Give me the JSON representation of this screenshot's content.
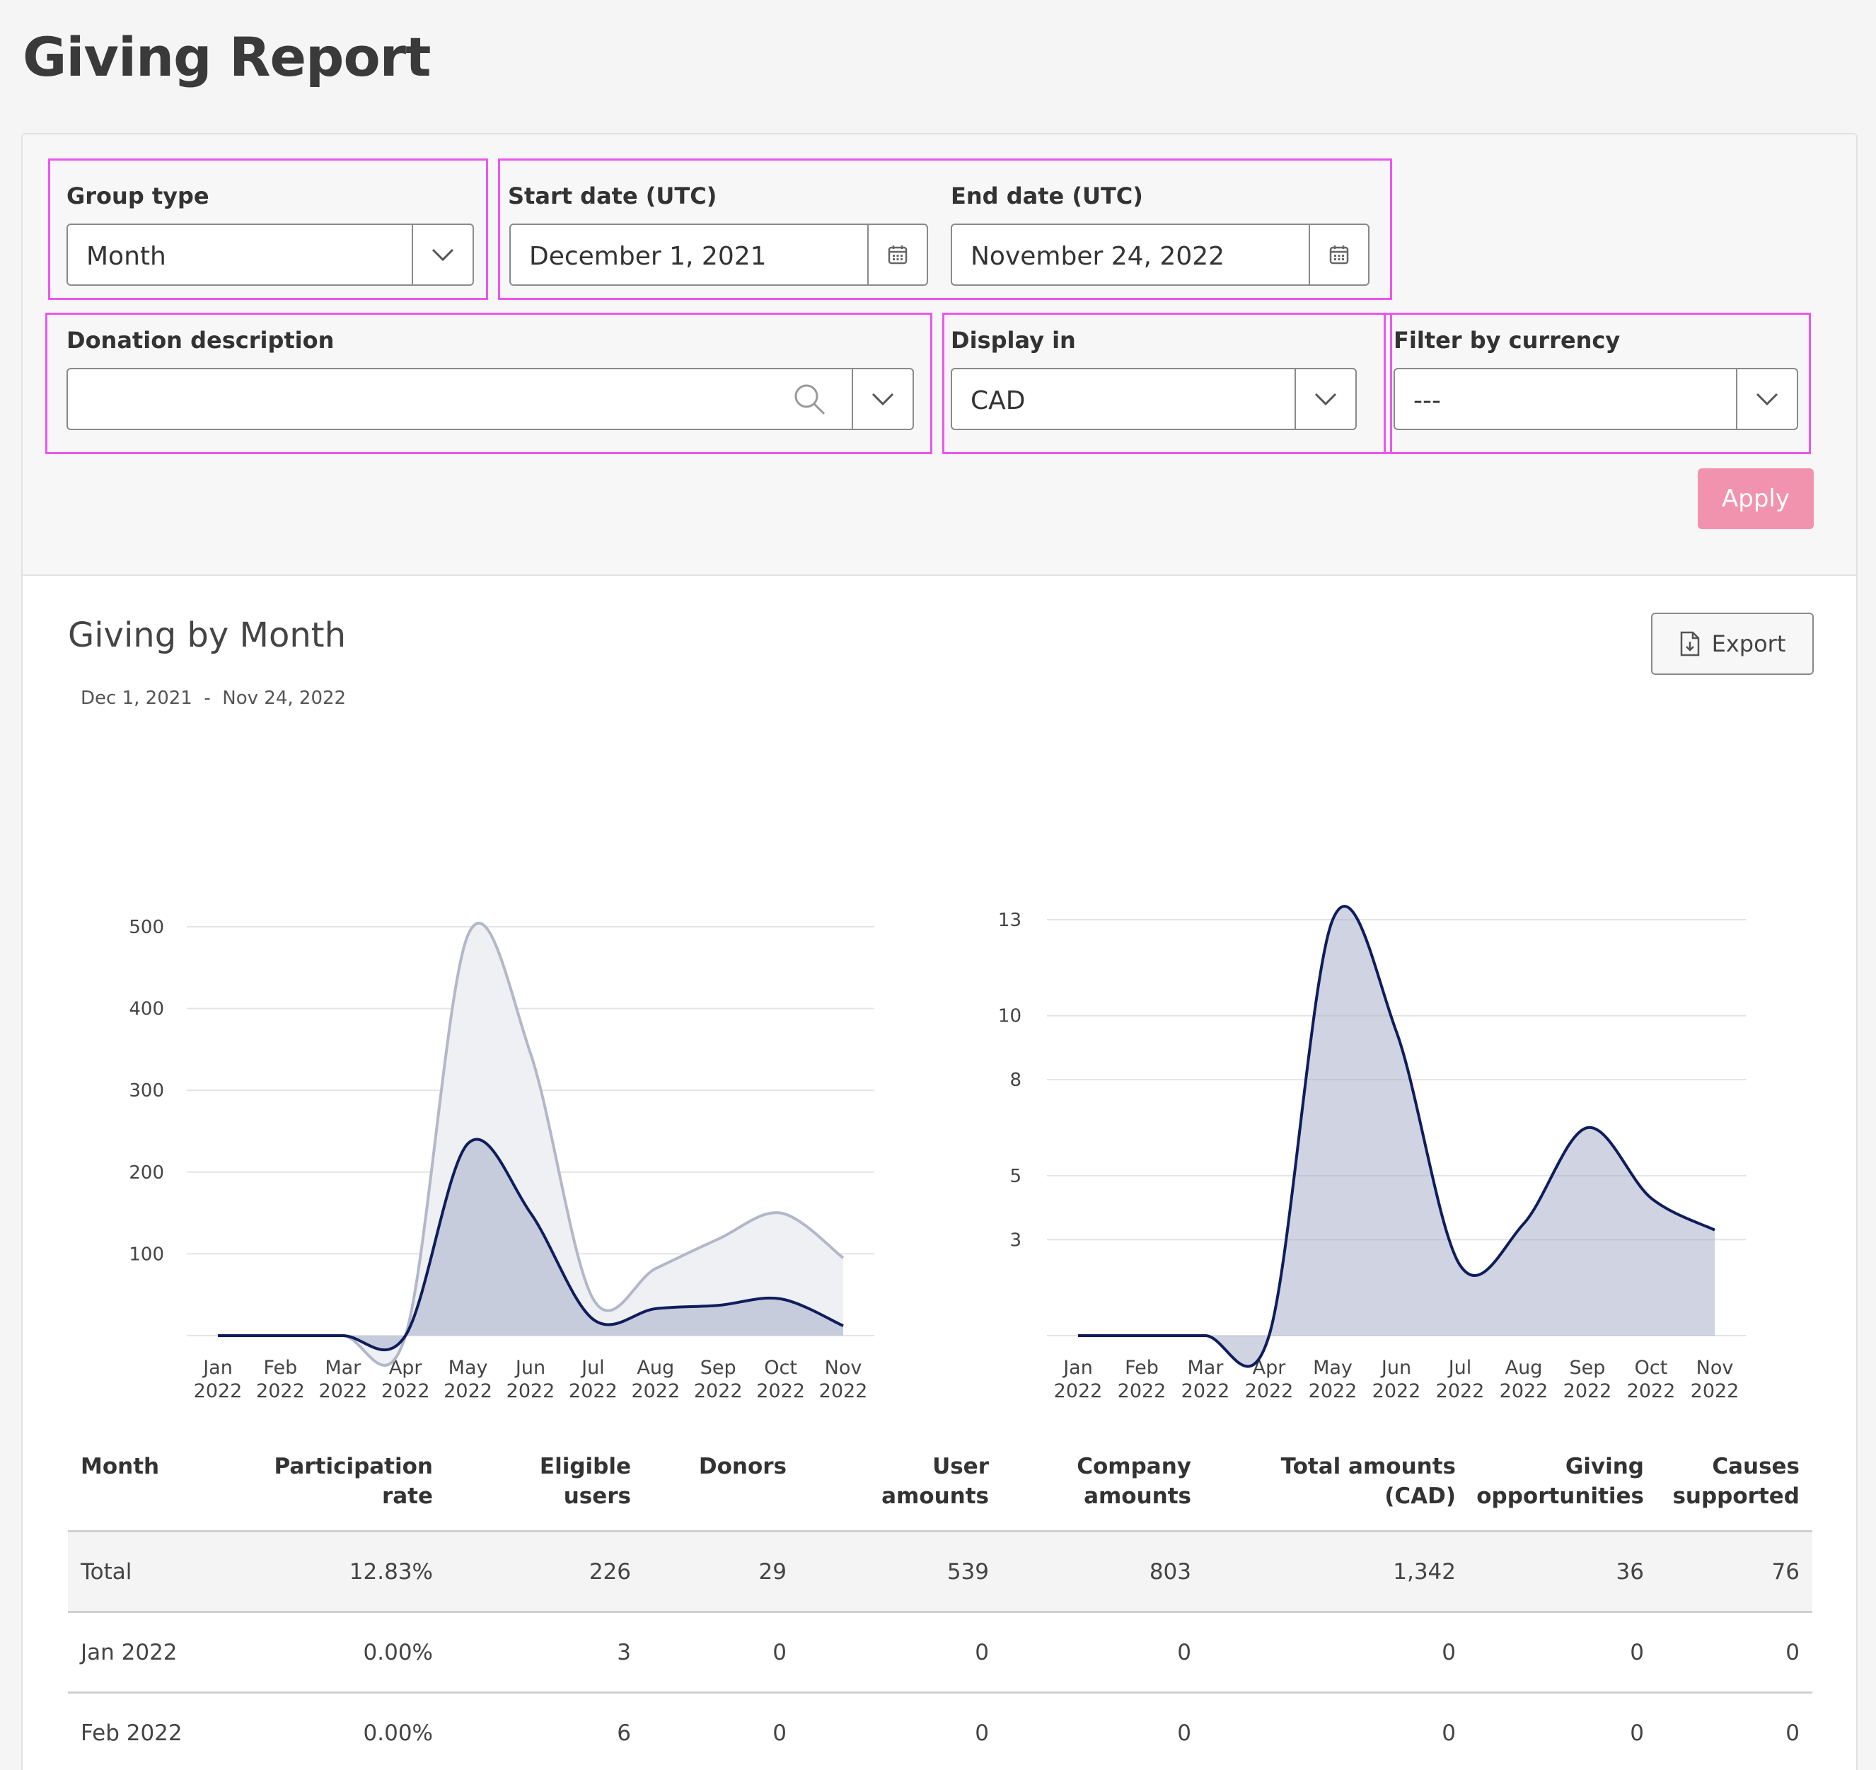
{
  "page": {
    "title": "Giving Report"
  },
  "filters": {
    "group_type": {
      "label": "Group type",
      "value": "Month"
    },
    "start_date": {
      "label": "Start date (UTC)",
      "value": "December 1, 2021"
    },
    "end_date": {
      "label": "End date (UTC)",
      "value": "November 24, 2022"
    },
    "donation_description": {
      "label": "Donation description",
      "value": ""
    },
    "display_in": {
      "label": "Display in",
      "value": "CAD"
    },
    "filter_currency": {
      "label": "Filter by currency",
      "value": "---"
    },
    "apply_label": "Apply"
  },
  "report": {
    "title": "Giving by Month",
    "range_from": "Dec 1, 2021",
    "range_sep": "-",
    "range_to": "Nov 24, 2022",
    "export_label": "Export"
  },
  "colors": {
    "navy": "#0f1d5c",
    "company_gray": "#b4b7c8",
    "apply_pink": "#f192ae",
    "highlight": "#ee55ee"
  },
  "chart_data": [
    {
      "type": "area",
      "categories": [
        "Jan 2022",
        "Feb 2022",
        "Mar 2022",
        "Apr 2022",
        "May 2022",
        "Jun 2022",
        "Jul 2022",
        "Aug 2022",
        "Sep 2022",
        "Oct 2022",
        "Nov 2022"
      ],
      "yticks": [
        100,
        200,
        300,
        400,
        500
      ],
      "ylim": [
        0,
        500
      ],
      "grid": true,
      "legend": "bottom",
      "series": [
        {
          "name": "User amounts",
          "color": "#0f1d5c",
          "values": [
            0,
            0,
            0,
            0,
            235,
            150,
            20,
            33,
            37,
            45,
            12
          ]
        },
        {
          "name": "Company amounts",
          "color": "#b4b7c8",
          "values": [
            0,
            0,
            0,
            0,
            490,
            345,
            45,
            82,
            118,
            150,
            95
          ]
        }
      ]
    },
    {
      "type": "area",
      "categories": [
        "Jan 2022",
        "Feb 2022",
        "Mar 2022",
        "Apr 2022",
        "May 2022",
        "Jun 2022",
        "Jul 2022",
        "Aug 2022",
        "Sep 2022",
        "Oct 2022",
        "Nov 2022"
      ],
      "yticks": [
        3,
        5,
        8,
        10,
        13
      ],
      "ylim": [
        0,
        13
      ],
      "grid": true,
      "legend": "bottom",
      "series": [
        {
          "name": "Donors",
          "color": "#0f1d5c",
          "values": [
            0,
            0,
            0,
            0,
            13,
            9.5,
            2.2,
            3.5,
            6.5,
            4.3,
            3.3
          ]
        }
      ]
    }
  ],
  "table": {
    "columns": [
      {
        "label": "Month",
        "align": "left"
      },
      {
        "label": "Participation\nrate",
        "align": "right"
      },
      {
        "label": "Eligible\nusers",
        "align": "right"
      },
      {
        "label": "Donors",
        "align": "right"
      },
      {
        "label": "User\namounts",
        "align": "right"
      },
      {
        "label": "Company\namounts",
        "align": "right"
      },
      {
        "label": "Total amounts\n(CAD)",
        "align": "right"
      },
      {
        "label": "Giving\nopportunities",
        "align": "right"
      },
      {
        "label": "Causes\nsupported",
        "align": "right"
      }
    ],
    "rows": [
      [
        "Total",
        "12.83%",
        "226",
        "29",
        "539",
        "803",
        "1,342",
        "36",
        "76"
      ],
      [
        "Jan 2022",
        "0.00%",
        "3",
        "0",
        "0",
        "0",
        "0",
        "0",
        "0"
      ],
      [
        "Feb 2022",
        "0.00%",
        "6",
        "0",
        "0",
        "0",
        "0",
        "0",
        "0"
      ]
    ]
  }
}
